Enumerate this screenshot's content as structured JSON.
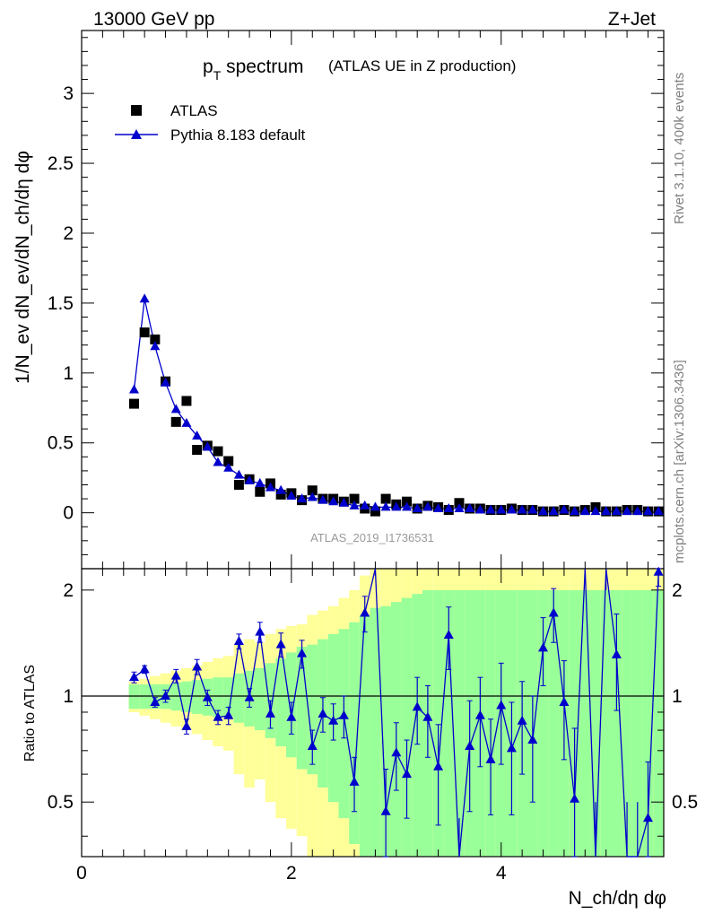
{
  "header": {
    "left": "13000 GeV pp",
    "right": "Z+Jet"
  },
  "plot_title": {
    "main": "p",
    "sub": "T",
    "rest": " spectrum",
    "suffix": "(ATLAS UE in Z production)"
  },
  "ylabel_main": "1/N_ev dN_ev/dN_ch/dη dφ",
  "ylabel_ratio": "Ratio to ATLAS",
  "xlabel": "N_ch/dη dφ",
  "analysis_id": "ATLAS_2019_I1736531",
  "side_text": {
    "rivet": "Rivet 3.1.10,  400k events",
    "mcplots": "mcplots.cern.ch [arXiv:1306.3436]"
  },
  "legend": {
    "data": "ATLAS",
    "mc": "Pythia 8.183 default"
  },
  "colors": {
    "data": "#000000",
    "mc": "#0000cc",
    "band_inner": "#99ff99",
    "band_outer": "#ffff99"
  },
  "chart_data": [
    {
      "type": "scatter",
      "name": "main",
      "xlim": [
        0,
        5.55
      ],
      "ylim": [
        -0.4,
        3.45
      ],
      "y_ticks": [
        0,
        0.5,
        1,
        1.5,
        2,
        2.5,
        3
      ],
      "y_tick_labels": [
        "0",
        "0.5",
        "1",
        "1.5",
        "2",
        "2.5",
        "3"
      ],
      "x": [
        0.5,
        0.6,
        0.7,
        0.8,
        0.9,
        1.0,
        1.1,
        1.2,
        1.3,
        1.4,
        1.5,
        1.6,
        1.7,
        1.8,
        1.9,
        2.0,
        2.1,
        2.2,
        2.3,
        2.4,
        2.5,
        2.6,
        2.7,
        2.8,
        2.9,
        3.0,
        3.1,
        3.2,
        3.3,
        3.4,
        3.5,
        3.6,
        3.7,
        3.8,
        3.9,
        4.0,
        4.1,
        4.2,
        4.3,
        4.4,
        4.5,
        4.6,
        4.7,
        4.8,
        4.9,
        5.0,
        5.1,
        5.2,
        5.3,
        5.4,
        5.5
      ],
      "series": [
        {
          "name": "ATLAS",
          "values": [
            0.78,
            1.29,
            1.24,
            0.94,
            0.65,
            0.8,
            0.45,
            0.48,
            0.44,
            0.37,
            0.2,
            0.24,
            0.15,
            0.21,
            0.13,
            0.14,
            0.09,
            0.16,
            0.1,
            0.1,
            0.08,
            0.1,
            0.03,
            0.01,
            0.1,
            0.06,
            0.08,
            0.03,
            0.05,
            0.04,
            0.02,
            0.07,
            0.03,
            0.03,
            0.02,
            0.02,
            0.03,
            0.02,
            0.02,
            0.01,
            0.01,
            0.02,
            0.01,
            0.02,
            0.04,
            0.01,
            0.01,
            0.02,
            0.02,
            0.01,
            0.01
          ]
        },
        {
          "name": "Pythia 8.183 default",
          "values": [
            0.88,
            1.53,
            1.19,
            0.93,
            0.74,
            0.64,
            0.55,
            0.47,
            0.36,
            0.32,
            0.27,
            0.23,
            0.21,
            0.18,
            0.16,
            0.12,
            0.1,
            0.11,
            0.09,
            0.08,
            0.07,
            0.05,
            0.05,
            0.04,
            0.04,
            0.04,
            0.04,
            0.03,
            0.04,
            0.03,
            0.03,
            0.03,
            0.03,
            0.02,
            0.02,
            0.02,
            0.02,
            0.02,
            0.02,
            0.01,
            0.01,
            0.02,
            0.01,
            0.01,
            0.01,
            0.01,
            0.01,
            0.01,
            0.01,
            0.01,
            0.01
          ]
        }
      ]
    },
    {
      "type": "line",
      "name": "ratio",
      "xlim": [
        0,
        5.55
      ],
      "ylim": [
        0.35,
        2.3
      ],
      "y_ticks": [
        0.5,
        1,
        2
      ],
      "y_tick_labels": [
        "0.5",
        "1",
        "2"
      ],
      "x_ticks": [
        0,
        2,
        4
      ],
      "x_tick_labels": [
        "0",
        "2",
        "4"
      ],
      "x": [
        0.5,
        0.6,
        0.7,
        0.8,
        0.9,
        1.0,
        1.1,
        1.2,
        1.3,
        1.4,
        1.5,
        1.6,
        1.7,
        1.8,
        1.9,
        2.0,
        2.1,
        2.2,
        2.3,
        2.4,
        2.5,
        2.6,
        2.7,
        2.8,
        2.9,
        3.0,
        3.1,
        3.2,
        3.3,
        3.4,
        3.5,
        3.6,
        3.7,
        3.8,
        3.9,
        4.0,
        4.1,
        4.2,
        4.3,
        4.4,
        4.5,
        4.6,
        4.7,
        4.8,
        4.9,
        5.0,
        5.1,
        5.2,
        5.3,
        5.4,
        5.5
      ],
      "ratio": [
        1.13,
        1.19,
        0.96,
        1.0,
        1.14,
        0.82,
        1.21,
        0.99,
        0.87,
        0.88,
        1.43,
        0.99,
        1.52,
        0.89,
        1.4,
        0.87,
        1.32,
        0.72,
        0.89,
        0.85,
        0.88,
        0.57,
        1.72,
        2.5,
        0.47,
        0.69,
        0.6,
        0.93,
        0.87,
        0.63,
        1.49,
        0.25,
        0.72,
        0.88,
        0.66,
        0.94,
        0.71,
        0.85,
        0.75,
        1.37,
        1.72,
        0.96,
        0.51,
        3.0,
        0.2,
        2.5,
        1.31,
        0.2,
        0.2,
        0.45,
        2.25
      ],
      "ratio_err": [
        0.04,
        0.03,
        0.03,
        0.04,
        0.05,
        0.04,
        0.06,
        0.05,
        0.04,
        0.05,
        0.07,
        0.06,
        0.1,
        0.08,
        0.11,
        0.09,
        0.12,
        0.08,
        0.1,
        0.1,
        0.12,
        0.1,
        0.2,
        0.3,
        0.15,
        0.15,
        0.15,
        0.2,
        0.2,
        0.2,
        0.3,
        0.2,
        0.25,
        0.25,
        0.2,
        0.3,
        0.25,
        0.25,
        0.25,
        0.3,
        0.3,
        0.3,
        0.3,
        0.5,
        0.3,
        0.5,
        0.4,
        0.3,
        0.3,
        0.2,
        0.2
      ],
      "band_inner": [
        0.08,
        0.08,
        0.08,
        0.08,
        0.09,
        0.1,
        0.11,
        0.12,
        0.13,
        0.13,
        0.16,
        0.18,
        0.2,
        0.24,
        0.28,
        0.33,
        0.38,
        0.4,
        0.45,
        0.5,
        0.55,
        0.62,
        0.7,
        0.78,
        0.8,
        0.85,
        0.9,
        0.95,
        1.0,
        1.0,
        1.0,
        1.0,
        1.0,
        1.0,
        1.0,
        1.0,
        1.0,
        1.0,
        1.0,
        1.0,
        1.0,
        1.0,
        1.0,
        1.0,
        1.0,
        1.0,
        1.0,
        1.0,
        1.0,
        1.0,
        1.0
      ],
      "band_outer": [
        0.1,
        0.12,
        0.14,
        0.16,
        0.18,
        0.2,
        0.22,
        0.25,
        0.28,
        0.3,
        0.4,
        0.45,
        0.42,
        0.5,
        0.55,
        0.58,
        0.6,
        0.7,
        0.75,
        0.8,
        0.9,
        1.0,
        1.2,
        1.3,
        1.3,
        1.4,
        1.4,
        1.5,
        1.5,
        1.5,
        1.5,
        1.5,
        1.5,
        1.5,
        1.5,
        1.5,
        1.5,
        1.5,
        1.5,
        1.5,
        1.5,
        1.5,
        1.5,
        1.5,
        1.5,
        1.5,
        1.5,
        1.5,
        1.5,
        1.5,
        1.5
      ]
    }
  ]
}
